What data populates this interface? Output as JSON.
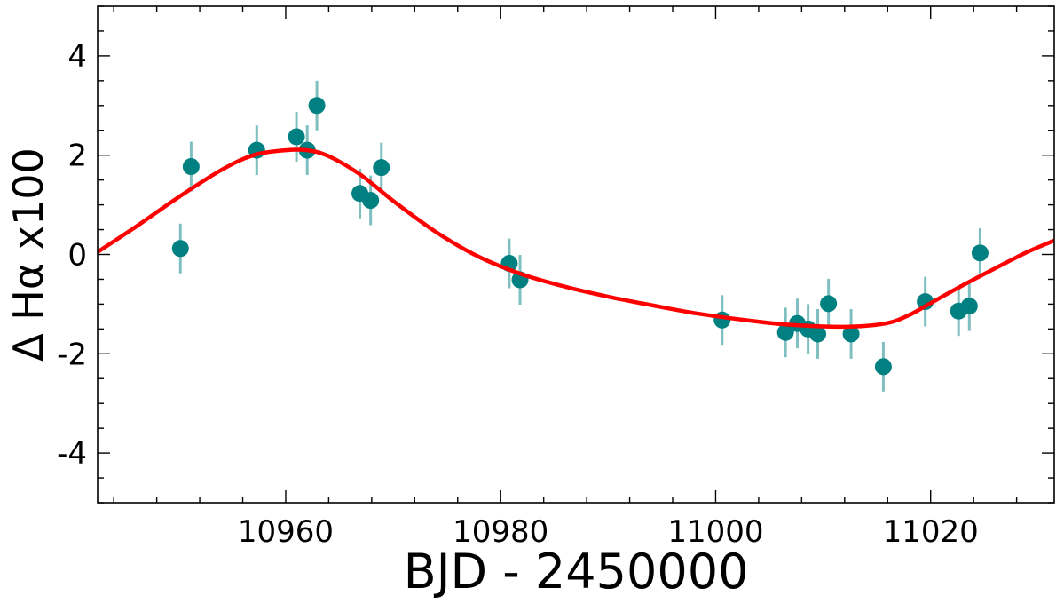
{
  "chart_data": {
    "type": "scatter",
    "xlabel": "BJD - 2450000",
    "ylabel": "Δ Hα x100",
    "xlim": [
      10942.5,
      11031.5
    ],
    "ylim": [
      -5,
      5
    ],
    "x_ticks": [
      10960,
      10980,
      11000,
      11020
    ],
    "x_tick_labels": [
      "10960",
      "10980",
      "11000",
      "11020"
    ],
    "y_ticks": [
      -4,
      -2,
      0,
      2,
      4
    ],
    "y_tick_labels": [
      "-4",
      "-2",
      "0",
      "2",
      "4"
    ],
    "grid": false,
    "series": [
      {
        "kind": "points_with_errorbars",
        "color": "#008080",
        "errorbar_color": "#7fbfbf",
        "points": [
          {
            "x": 10950.2,
            "y": 0.12,
            "err": 0.5
          },
          {
            "x": 10951.2,
            "y": 1.77,
            "err": 0.5
          },
          {
            "x": 10957.3,
            "y": 2.1,
            "err": 0.5
          },
          {
            "x": 10961.0,
            "y": 2.37,
            "err": 0.5
          },
          {
            "x": 10962.0,
            "y": 2.1,
            "err": 0.5
          },
          {
            "x": 10962.9,
            "y": 3.0,
            "err": 0.5
          },
          {
            "x": 10966.9,
            "y": 1.23,
            "err": 0.5
          },
          {
            "x": 10967.9,
            "y": 1.09,
            "err": 0.5
          },
          {
            "x": 10968.9,
            "y": 1.75,
            "err": 0.5
          },
          {
            "x": 10980.8,
            "y": -0.18,
            "err": 0.5
          },
          {
            "x": 10981.8,
            "y": -0.51,
            "err": 0.5
          },
          {
            "x": 11000.6,
            "y": -1.32,
            "err": 0.5
          },
          {
            "x": 11006.5,
            "y": -1.57,
            "err": 0.5
          },
          {
            "x": 11007.6,
            "y": -1.39,
            "err": 0.5
          },
          {
            "x": 11008.6,
            "y": -1.5,
            "err": 0.5
          },
          {
            "x": 11009.5,
            "y": -1.6,
            "err": 0.5
          },
          {
            "x": 11010.5,
            "y": -0.99,
            "err": 0.5
          },
          {
            "x": 11012.6,
            "y": -1.6,
            "err": 0.5
          },
          {
            "x": 11015.6,
            "y": -2.26,
            "err": 0.5
          },
          {
            "x": 11019.5,
            "y": -0.95,
            "err": 0.5
          },
          {
            "x": 11022.6,
            "y": -1.14,
            "err": 0.5
          },
          {
            "x": 11023.6,
            "y": -1.04,
            "err": 0.5
          },
          {
            "x": 11024.6,
            "y": 0.03,
            "err": 0.5
          }
        ]
      },
      {
        "kind": "model_curve",
        "color": "#ff0000",
        "x": [
          10942.5,
          10946,
          10950,
          10954,
          10957,
          10960,
          10962,
          10964,
          10967,
          10970,
          10974,
          10978,
          10982,
          10986,
          10990,
          10994,
          10998,
          11002,
          11006,
          11010,
          11013,
          11016,
          11018,
          11020,
          11023,
          11026,
          11029,
          11031.5
        ],
        "y": [
          0.05,
          0.55,
          1.15,
          1.7,
          2.0,
          2.1,
          2.1,
          1.98,
          1.6,
          1.08,
          0.45,
          -0.05,
          -0.4,
          -0.65,
          -0.85,
          -1.02,
          -1.18,
          -1.3,
          -1.4,
          -1.45,
          -1.45,
          -1.38,
          -1.22,
          -0.98,
          -0.62,
          -0.28,
          0.05,
          0.28
        ]
      }
    ]
  }
}
